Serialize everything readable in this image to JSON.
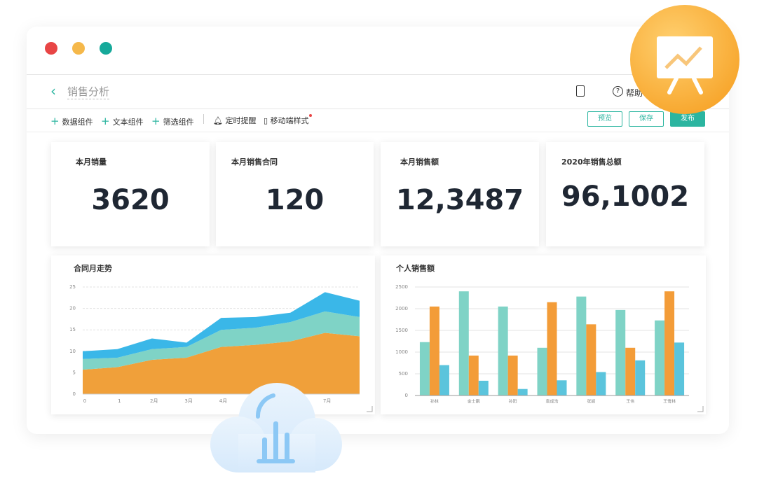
{
  "header": {
    "title": "销售分析",
    "help": "帮助"
  },
  "toolbar": {
    "items": [
      "数据组件",
      "文本组件",
      "筛选组件",
      "定时提醒",
      "移动端样式"
    ],
    "buttons": [
      "预览",
      "保存",
      "发布"
    ]
  },
  "kpis": [
    {
      "label": "本月销量",
      "value": "3620"
    },
    {
      "label": "本月销售合同",
      "value": "120"
    },
    {
      "label": "本月销售额",
      "value": "12,3487"
    },
    {
      "label": "2020年销售总额",
      "value": "96,1002"
    }
  ],
  "chart_data": [
    {
      "type": "area",
      "title": "合同月走势",
      "stacked": true,
      "grid": true,
      "categories": [
        "0",
        "1",
        "2月",
        "3月",
        "4月",
        null,
        null,
        "7月",
        null
      ],
      "series": [
        {
          "color": "#f0a03a",
          "values": [
            5.7,
            6.3,
            8,
            8.5,
            11,
            11.5,
            12.3,
            14.3,
            13.5
          ]
        },
        {
          "color": "#7fd3c6",
          "values": [
            2.5,
            2.2,
            2.5,
            2.5,
            4,
            4,
            4.5,
            5,
            4.5
          ]
        },
        {
          "color": "#3ab7e8",
          "values": [
            1.8,
            2,
            2.5,
            1,
            2.8,
            2.5,
            2.2,
            4.5,
            3.8
          ]
        }
      ],
      "ylim": [
        0,
        25
      ],
      "yticks": [
        0,
        5,
        10,
        15,
        20,
        25
      ]
    },
    {
      "type": "bar",
      "title": "个人销售额",
      "grid": true,
      "categories": [
        "孙林",
        "金士鹏",
        "孙阳",
        "袁成浩",
        "张颖",
        "王伟",
        "王雪林"
      ],
      "series": [
        {
          "color": "#7fd3c6",
          "values": [
            1230,
            2400,
            2050,
            1100,
            2280,
            1970,
            1730
          ]
        },
        {
          "color": "#f39c38",
          "values": [
            2050,
            920,
            920,
            2150,
            1640,
            1100,
            2400
          ]
        },
        {
          "color": "#5bc4dc",
          "values": [
            700,
            340,
            150,
            350,
            540,
            810,
            1220
          ]
        }
      ],
      "ylim": [
        0,
        2500
      ],
      "yticks": [
        0,
        500,
        1000,
        1500,
        2000,
        2500
      ]
    }
  ]
}
